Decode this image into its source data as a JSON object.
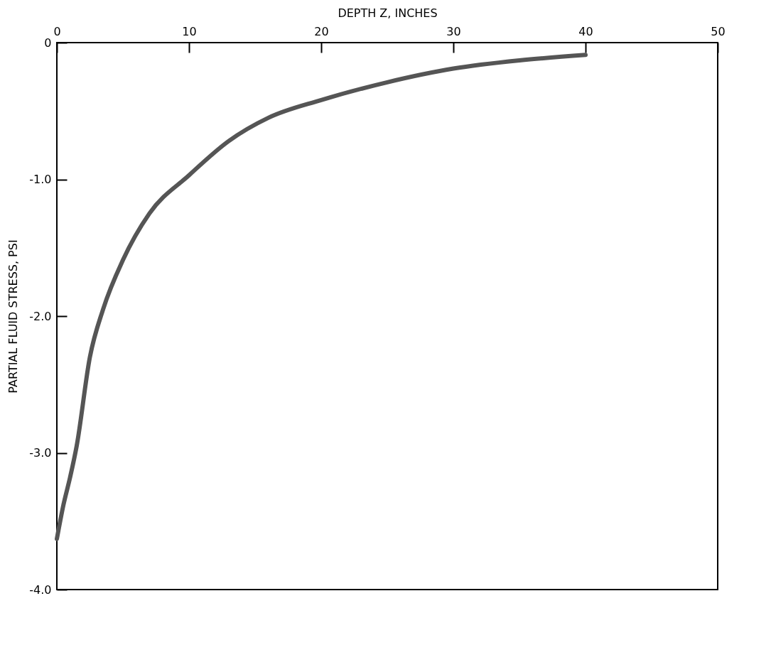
{
  "chart_data": {
    "type": "line",
    "xlabel": "DEPTH Z, INCHES",
    "ylabel": "PARTIAL FLUID STRESS, PSI",
    "x": [
      0,
      0.5,
      1,
      1.5,
      2.5,
      3.5,
      5,
      7,
      10,
      13,
      16,
      20,
      25,
      30,
      35,
      40
    ],
    "series": [
      {
        "color": "#555555",
        "values": [
          -3.63,
          -3.38,
          -3.18,
          -2.95,
          -2.3,
          -1.95,
          -1.59,
          -1.25,
          -0.97,
          -0.72,
          -0.55,
          -0.42,
          -0.29,
          -0.19,
          -0.13,
          -0.09
        ]
      }
    ],
    "xlim": [
      0,
      50
    ],
    "xticks": [
      0,
      10,
      20,
      30,
      40,
      50
    ],
    "ylim": [
      -4,
      0
    ],
    "yticks": [
      0,
      {
        "value": -1,
        "label": "-1.0"
      },
      {
        "value": -2,
        "label": "-2.0"
      },
      {
        "value": -3,
        "label": "-3.0"
      },
      {
        "value": -4,
        "label": "-4.0"
      }
    ],
    "grid": false,
    "marker": "none",
    "line_style": "solid"
  }
}
